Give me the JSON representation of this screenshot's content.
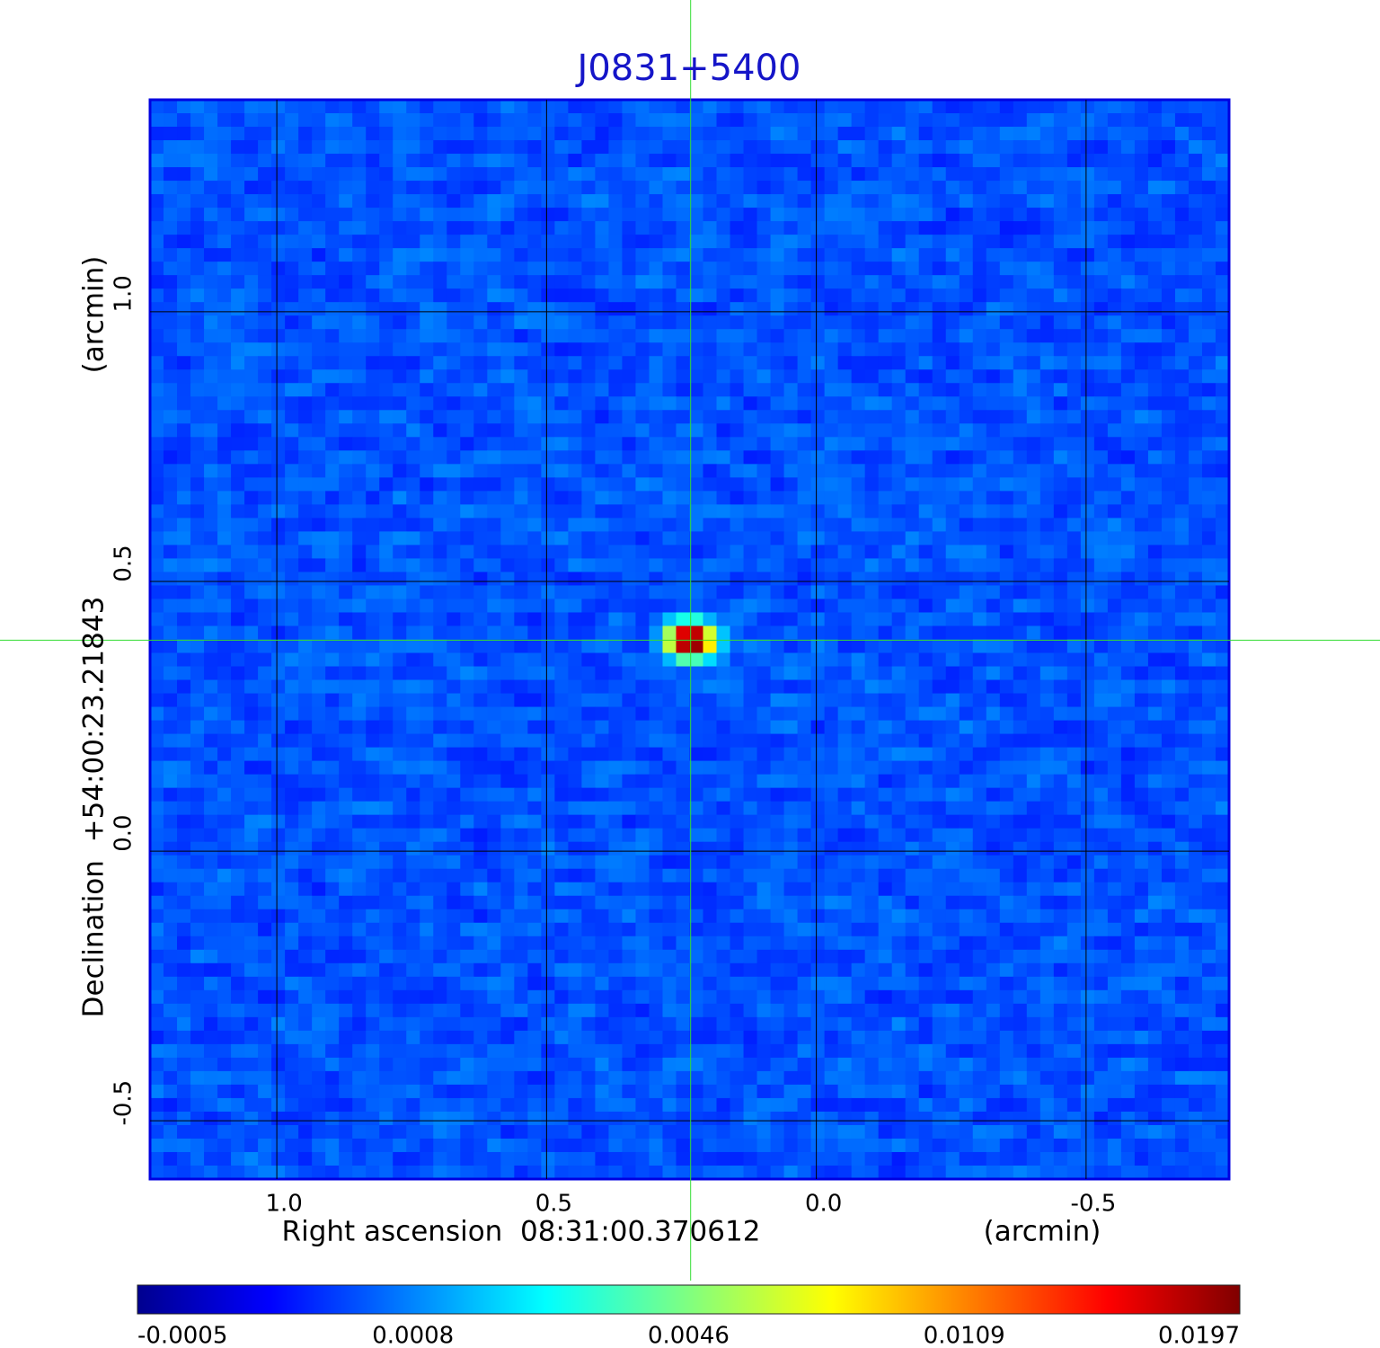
{
  "chart_data": {
    "type": "image",
    "title": "J0831+5400",
    "x_label": "Right ascension  08:31:00.370612",
    "x_unit": "(arcmin)",
    "y_label": "Declination  +54:00:23.21843",
    "y_unit": "(arcmin)",
    "xlim": [
      1.235,
      -0.765
    ],
    "ylim": [
      -0.608,
      1.393
    ],
    "xticks": [
      {
        "value": 1,
        "label": "1.0"
      },
      0.5,
      {
        "value": 0,
        "label": "0.0"
      },
      -0.5
    ],
    "yticks": [
      {
        "value": 1,
        "label": "1.0"
      },
      0.5,
      {
        "value": 0,
        "label": "0.0"
      },
      -0.5
    ],
    "grid": true,
    "source": {
      "x": 0.233,
      "y": 0.391
    },
    "colorbar_ticks": [
      -0.0005,
      0.0008,
      0.0046,
      0.0109,
      0.0197
    ]
  }
}
